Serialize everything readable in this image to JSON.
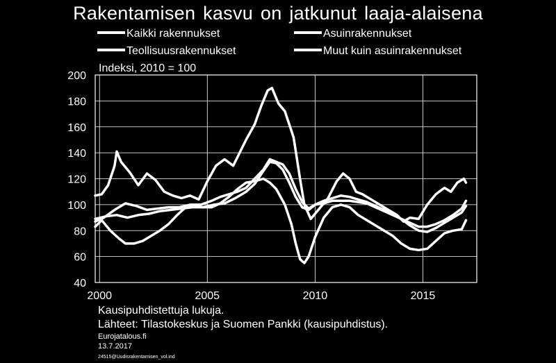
{
  "chart_data": {
    "type": "line",
    "title": "Rakentamisen  kasvu  on jatkunut  laaja-alaisena",
    "unit_label": "Indeksi, 2010 = 100",
    "ylim": [
      40,
      200
    ],
    "yticks": [
      40,
      60,
      80,
      100,
      120,
      140,
      160,
      180,
      200
    ],
    "xlim": [
      1999.8,
      2017.5
    ],
    "xticks": [
      {
        "value": 2000,
        "label": "2000"
      },
      {
        "value": 2005,
        "label": "2005"
      },
      {
        "value": 2010,
        "label": "2010"
      },
      {
        "value": 2015,
        "label": "2015"
      }
    ],
    "grid": true,
    "legend_position": "top",
    "series": [
      {
        "name": "Kaikki rakennukset",
        "points": [
          [
            1999.8,
            87
          ],
          [
            2000.2,
            90
          ],
          [
            2000.7,
            96
          ],
          [
            2001.2,
            101
          ],
          [
            2001.7,
            99
          ],
          [
            2002.2,
            96
          ],
          [
            2002.7,
            97
          ],
          [
            2003.2,
            98
          ],
          [
            2003.7,
            98
          ],
          [
            2004.2,
            100
          ],
          [
            2004.7,
            100
          ],
          [
            2005.2,
            103
          ],
          [
            2005.6,
            106
          ],
          [
            2006.0,
            108
          ],
          [
            2006.4,
            110
          ],
          [
            2006.8,
            113
          ],
          [
            2007.2,
            120
          ],
          [
            2007.6,
            127
          ],
          [
            2007.9,
            135
          ],
          [
            2008.2,
            133
          ],
          [
            2008.5,
            131
          ],
          [
            2008.8,
            124
          ],
          [
            2009.1,
            112
          ],
          [
            2009.4,
            102
          ],
          [
            2009.7,
            97
          ],
          [
            2010.0,
            100
          ],
          [
            2010.4,
            101
          ],
          [
            2010.8,
            103
          ],
          [
            2011.2,
            103
          ],
          [
            2011.6,
            103
          ],
          [
            2012.0,
            102
          ],
          [
            2012.4,
            101
          ],
          [
            2012.8,
            98
          ],
          [
            2013.2,
            95
          ],
          [
            2013.6,
            92
          ],
          [
            2014.0,
            89
          ],
          [
            2014.4,
            86
          ],
          [
            2014.8,
            83
          ],
          [
            2015.2,
            83
          ],
          [
            2015.6,
            85
          ],
          [
            2016.0,
            88
          ],
          [
            2016.4,
            92
          ],
          [
            2016.8,
            97
          ],
          [
            2017.0,
            103
          ]
        ]
      },
      {
        "name": "Asuinrakennukset",
        "points": [
          [
            1999.8,
            83
          ],
          [
            2000.1,
            88
          ],
          [
            2000.5,
            80
          ],
          [
            2000.9,
            74
          ],
          [
            2001.2,
            70
          ],
          [
            2001.6,
            70
          ],
          [
            2002.0,
            72
          ],
          [
            2002.4,
            76
          ],
          [
            2002.8,
            80
          ],
          [
            2003.2,
            85
          ],
          [
            2003.6,
            92
          ],
          [
            2004.0,
            98
          ],
          [
            2004.4,
            99
          ],
          [
            2004.8,
            98
          ],
          [
            2005.2,
            98
          ],
          [
            2005.6,
            101
          ],
          [
            2006.0,
            106
          ],
          [
            2006.4,
            112
          ],
          [
            2006.8,
            117
          ],
          [
            2007.2,
            118
          ],
          [
            2007.6,
            120
          ],
          [
            2007.9,
            117
          ],
          [
            2008.2,
            112
          ],
          [
            2008.6,
            100
          ],
          [
            2008.9,
            85
          ],
          [
            2009.1,
            70
          ],
          [
            2009.3,
            58
          ],
          [
            2009.5,
            55
          ],
          [
            2009.7,
            60
          ],
          [
            2010.0,
            75
          ],
          [
            2010.4,
            90
          ],
          [
            2010.8,
            98
          ],
          [
            2011.2,
            100
          ],
          [
            2011.6,
            98
          ],
          [
            2012.0,
            92
          ],
          [
            2012.4,
            88
          ],
          [
            2012.8,
            84
          ],
          [
            2013.2,
            80
          ],
          [
            2013.6,
            76
          ],
          [
            2014.0,
            70
          ],
          [
            2014.4,
            66
          ],
          [
            2014.8,
            65
          ],
          [
            2015.2,
            66
          ],
          [
            2015.6,
            72
          ],
          [
            2016.0,
            78
          ],
          [
            2016.4,
            80
          ],
          [
            2016.8,
            81
          ],
          [
            2017.0,
            88
          ]
        ]
      },
      {
        "name": "Teollisuusrakennukset",
        "points": [
          [
            1999.8,
            107
          ],
          [
            2000.1,
            108
          ],
          [
            2000.4,
            115
          ],
          [
            2000.7,
            130
          ],
          [
            2000.8,
            141
          ],
          [
            2001.0,
            133
          ],
          [
            2001.4,
            125
          ],
          [
            2001.8,
            115
          ],
          [
            2002.2,
            124
          ],
          [
            2002.6,
            119
          ],
          [
            2003.0,
            110
          ],
          [
            2003.4,
            107
          ],
          [
            2003.8,
            105
          ],
          [
            2004.2,
            107
          ],
          [
            2004.6,
            104
          ],
          [
            2005.0,
            118
          ],
          [
            2005.4,
            130
          ],
          [
            2005.8,
            135
          ],
          [
            2006.2,
            130
          ],
          [
            2006.5,
            140
          ],
          [
            2006.8,
            150
          ],
          [
            2007.2,
            162
          ],
          [
            2007.5,
            176
          ],
          [
            2007.8,
            188
          ],
          [
            2008.0,
            190
          ],
          [
            2008.3,
            178
          ],
          [
            2008.6,
            172
          ],
          [
            2009.0,
            152
          ],
          [
            2009.3,
            120
          ],
          [
            2009.5,
            100
          ],
          [
            2009.8,
            89
          ],
          [
            2010.2,
            97
          ],
          [
            2010.6,
            105
          ],
          [
            2011.0,
            118
          ],
          [
            2011.3,
            124
          ],
          [
            2011.6,
            120
          ],
          [
            2011.9,
            110
          ],
          [
            2012.2,
            108
          ],
          [
            2012.6,
            104
          ],
          [
            2013.0,
            100
          ],
          [
            2013.4,
            96
          ],
          [
            2013.8,
            92
          ],
          [
            2014.1,
            87
          ],
          [
            2014.4,
            90
          ],
          [
            2014.8,
            89
          ],
          [
            2015.2,
            100
          ],
          [
            2015.6,
            108
          ],
          [
            2016.0,
            113
          ],
          [
            2016.3,
            110
          ],
          [
            2016.6,
            117
          ],
          [
            2016.9,
            120
          ],
          [
            2017.0,
            117
          ]
        ]
      },
      {
        "name": "Muut kuin asuinrakennukset",
        "points": [
          [
            1999.8,
            89
          ],
          [
            2000.3,
            91
          ],
          [
            2000.8,
            92
          ],
          [
            2001.3,
            90
          ],
          [
            2001.8,
            92
          ],
          [
            2002.3,
            93
          ],
          [
            2002.8,
            95
          ],
          [
            2003.3,
            96
          ],
          [
            2003.8,
            97
          ],
          [
            2004.3,
            98
          ],
          [
            2004.8,
            98
          ],
          [
            2005.3,
            100
          ],
          [
            2005.8,
            101
          ],
          [
            2006.3,
            105
          ],
          [
            2006.8,
            110
          ],
          [
            2007.2,
            116
          ],
          [
            2007.6,
            126
          ],
          [
            2007.9,
            133
          ],
          [
            2008.2,
            132
          ],
          [
            2008.5,
            127
          ],
          [
            2008.8,
            117
          ],
          [
            2009.1,
            106
          ],
          [
            2009.4,
            98
          ],
          [
            2009.7,
            96
          ],
          [
            2010.0,
            100
          ],
          [
            2010.4,
            103
          ],
          [
            2010.8,
            105
          ],
          [
            2011.2,
            107
          ],
          [
            2011.6,
            106
          ],
          [
            2012.0,
            104
          ],
          [
            2012.4,
            102
          ],
          [
            2012.8,
            99
          ],
          [
            2013.2,
            96
          ],
          [
            2013.6,
            93
          ],
          [
            2014.0,
            89
          ],
          [
            2014.4,
            84
          ],
          [
            2014.8,
            80
          ],
          [
            2015.2,
            79
          ],
          [
            2015.6,
            82
          ],
          [
            2016.0,
            86
          ],
          [
            2016.4,
            90
          ],
          [
            2016.8,
            94
          ],
          [
            2017.0,
            99
          ]
        ]
      }
    ]
  },
  "footnote": {
    "line1": "Kausipuhdistettuja  lukuja.",
    "line2": "Lähteet:  Tilastokeskus  ja Suomen Pankki  (kausipuhdistus)."
  },
  "source": {
    "site": "Eurojatalous.fi",
    "date": "13.7.2017",
    "id": "24515@Uudisrakentamisen_vol.ind"
  }
}
